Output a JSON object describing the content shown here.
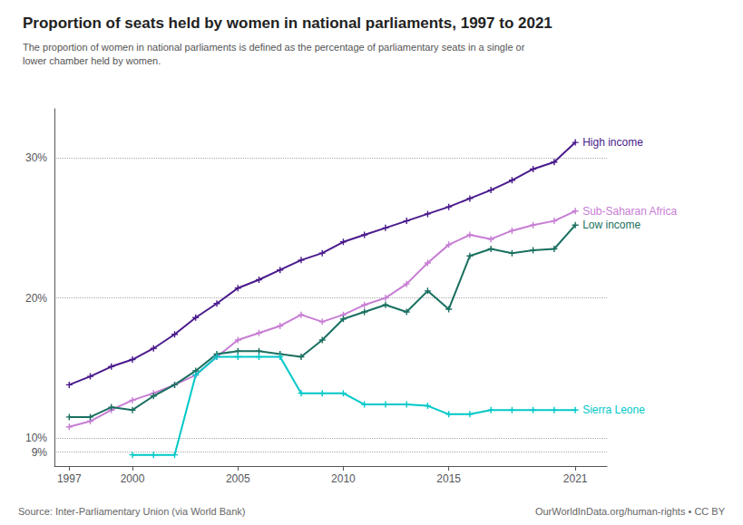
{
  "chart_data": {
    "type": "line",
    "title": "Proportion of seats held by women in national parliaments, 1997 to 2021",
    "subtitle": "The proportion of women in national parliaments is defined as the percentage of parliamentary seats in a single or\nlower chamber held by women.",
    "annotations": [
      "Source: Inter-Parliamentary Union (via World Bank)",
      "OurWorldInData.org/human-rights • CC BY"
    ],
    "x": [
      1997,
      1998,
      1999,
      2000,
      2001,
      2002,
      2003,
      2004,
      2005,
      2006,
      2007,
      2008,
      2009,
      2010,
      2011,
      2012,
      2013,
      2014,
      2015,
      2016,
      2017,
      2018,
      2019,
      2020,
      2021
    ],
    "series": [
      {
        "name": "High income",
        "color": "#4a1a8c",
        "values": [
          13.8,
          14.4,
          15.1,
          15.6,
          16.4,
          17.4,
          18.6,
          19.6,
          20.7,
          21.3,
          22.0,
          22.7,
          23.2,
          24.0,
          24.5,
          25.0,
          25.5,
          26.0,
          26.5,
          27.1,
          27.7,
          28.4,
          29.2,
          29.7,
          31.1
        ]
      },
      {
        "name": "Sub-Saharan Africa",
        "color": "#c77dd4",
        "values": [
          10.8,
          11.2,
          12.0,
          12.7,
          13.2,
          13.8,
          14.5,
          15.8,
          17.0,
          17.5,
          18.0,
          18.8,
          18.3,
          18.8,
          19.5,
          20.0,
          21.0,
          22.5,
          23.8,
          24.5,
          24.2,
          24.8,
          25.2,
          25.5,
          26.2
        ]
      },
      {
        "name": "Low income",
        "color": "#1a7060",
        "values": [
          11.5,
          11.5,
          12.2,
          12.0,
          13.0,
          13.8,
          14.8,
          16.0,
          16.2,
          16.2,
          16.0,
          15.8,
          17.0,
          18.5,
          19.0,
          19.5,
          19.0,
          20.5,
          19.2,
          23.0,
          23.5,
          23.2,
          23.4,
          23.5,
          25.2
        ]
      },
      {
        "name": "Sierra Leone",
        "color": "#00c8c8",
        "values": [
          null,
          null,
          null,
          8.8,
          8.8,
          8.8,
          14.5,
          15.8,
          15.8,
          15.8,
          15.8,
          13.2,
          13.2,
          13.2,
          12.4,
          12.4,
          12.4,
          12.3,
          11.7,
          11.7,
          12.0,
          12.0,
          12.0,
          12.0,
          12.0
        ]
      }
    ],
    "marker": "plus",
    "xlim": [
      1996.3,
      2022.5
    ],
    "xticks": [
      1997,
      2000,
      2005,
      2010,
      2015,
      2021
    ],
    "ylim": [
      8.0,
      33.5
    ],
    "yticks": [
      {
        "value": 9,
        "label": "9%"
      },
      {
        "value": 10,
        "label": "10%"
      },
      {
        "value": 20,
        "label": "20%"
      },
      {
        "value": 30,
        "label": "30%"
      }
    ],
    "grid": true
  }
}
